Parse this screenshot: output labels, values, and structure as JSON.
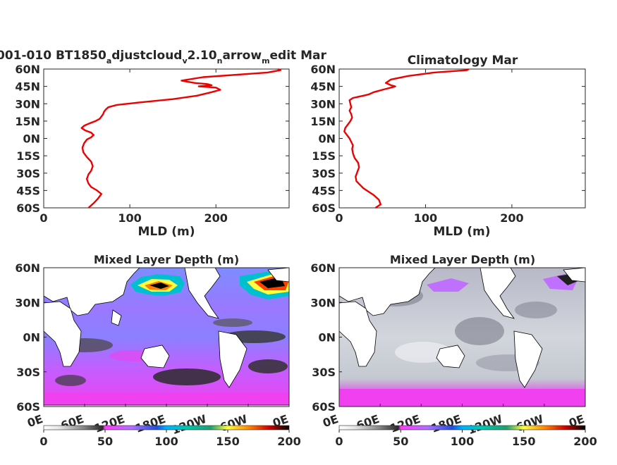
{
  "titles": {
    "profile_model": "001-010 BT1850",
    "profile_model_sub1": "a",
    "profile_model_mid1": "djustcloud",
    "profile_model_sub2": "v",
    "profile_model_mid2": "2.10",
    "profile_model_sub3": "n",
    "profile_model_mid3": "arrow",
    "profile_model_sub4": "m",
    "profile_model_end": "edit Mar",
    "profile_clim": "Climatology Mar",
    "map_model": "Mixed Layer Depth (m)",
    "map_clim": "Mixed Layer Depth (m)"
  },
  "profile_axes": {
    "yticks": [
      "60N",
      "45N",
      "30N",
      "15N",
      "0N",
      "15S",
      "30S",
      "45S",
      "60S"
    ],
    "xticks": [
      "0",
      "100",
      "200"
    ],
    "xlabel": "MLD (m)"
  },
  "map_axes": {
    "yticks": [
      "60N",
      "30N",
      "0N",
      "30S",
      "60S"
    ],
    "xticks": [
      "0E",
      "60E",
      "120E",
      "180E",
      "120W",
      "60W",
      "0E"
    ]
  },
  "colorbar": {
    "ticks": [
      "0",
      "50",
      "100",
      "150",
      "200"
    ],
    "colors": [
      "#ffffff",
      "#dcdcdc",
      "#7a7a7a",
      "#2a2a2a",
      "#ff3cff",
      "#b070ff",
      "#5ab0ff",
      "#00d0c0",
      "#1fa070",
      "#ffff40",
      "#ff8000",
      "#cc0000",
      "#000000"
    ]
  },
  "chart_data": [
    {
      "type": "line",
      "title": "001-010 BT1850adjustcloudv2.10narrowmedit Mar",
      "xlabel": "MLD (m)",
      "ylabel": "",
      "xlim": [
        0,
        285
      ],
      "ylim": [
        -60,
        60
      ],
      "color": "#ee0000",
      "series": [
        {
          "x": [
            52,
            58,
            63,
            67,
            62,
            55,
            52,
            50,
            52,
            55,
            57,
            55,
            50,
            46,
            45,
            47,
            50,
            55,
            58,
            55,
            48,
            44,
            47,
            53,
            60,
            65,
            67,
            69,
            70,
            72,
            75,
            85,
            110,
            150,
            178,
            195,
            205,
            200,
            180,
            195,
            190,
            175,
            160,
            185,
            260,
            275,
            272
          ],
          "y": [
            -60,
            -56,
            -52,
            -48,
            -45,
            -42,
            -39,
            -35,
            -31,
            -28,
            -24,
            -20,
            -16,
            -12,
            -8,
            -4,
            -1,
            1,
            3,
            5,
            7,
            9,
            11,
            13,
            15,
            17,
            19,
            21,
            23,
            25,
            27,
            29,
            31,
            34,
            37,
            40,
            42,
            44,
            45,
            46,
            47,
            48,
            50,
            53,
            57,
            59,
            60
          ]
        }
      ]
    },
    {
      "type": "line",
      "title": "Climatology Mar",
      "xlabel": "MLD (m)",
      "ylabel": "",
      "xlim": [
        0,
        285
      ],
      "ylim": [
        -60,
        60
      ],
      "color": "#ee0000",
      "series": [
        {
          "x": [
            42,
            48,
            46,
            40,
            34,
            28,
            24,
            20,
            19,
            21,
            23,
            22,
            18,
            16,
            15,
            16,
            14,
            12,
            9,
            6,
            7,
            10,
            13,
            15,
            14,
            12,
            14,
            13,
            12,
            16,
            22,
            28,
            34,
            40,
            45,
            50,
            55,
            60,
            65,
            60,
            54,
            60,
            80,
            110,
            148,
            150
          ],
          "y": [
            -60,
            -57,
            -53,
            -49,
            -46,
            -43,
            -40,
            -37,
            -33,
            -29,
            -25,
            -21,
            -17,
            -13,
            -9,
            -6,
            -3,
            0,
            3,
            6,
            9,
            12,
            15,
            18,
            21,
            24,
            27,
            30,
            33,
            35,
            36,
            37,
            38,
            40,
            41,
            42,
            43,
            44,
            45,
            46,
            48,
            51,
            54,
            57,
            59,
            60
          ]
        }
      ]
    }
  ]
}
